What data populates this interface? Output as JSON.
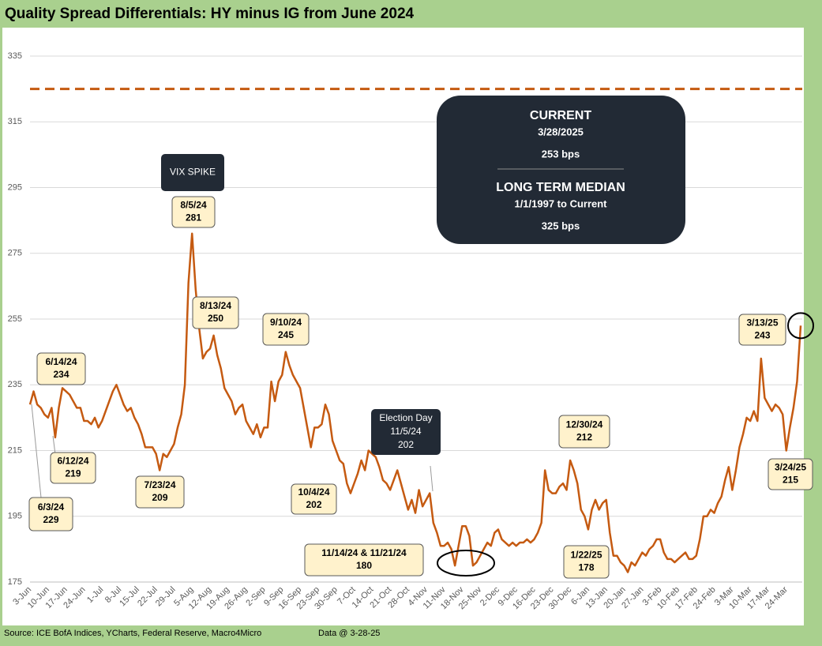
{
  "chart_data": {
    "type": "line",
    "title": "Quality Spread Differentials: HY minus IG from June 2024",
    "source": "Source: ICE BofA Indices, YCharts, Federal Reserve, Macro4Micro",
    "data_note": "Data @ 3-28-25",
    "categories": [
      "3-Jun",
      null,
      null,
      null,
      null,
      "10-Jun",
      null,
      null,
      null,
      null,
      "17-Jun",
      null,
      null,
      null,
      null,
      "24-Jun",
      null,
      null,
      null,
      null,
      "1-Jul",
      null,
      null,
      null,
      null,
      "8-Jul",
      null,
      null,
      null,
      null,
      "15-Jul",
      null,
      null,
      null,
      null,
      "22-Jul",
      null,
      null,
      null,
      null,
      "29-Jul",
      null,
      null,
      null,
      null,
      "5-Aug",
      null,
      null,
      null,
      null,
      "12-Aug",
      null,
      null,
      null,
      null,
      "19-Aug",
      null,
      null,
      null,
      null,
      "26-Aug",
      null,
      null,
      null,
      null,
      "2-Sep",
      null,
      null,
      null,
      null,
      "9-Sep",
      null,
      null,
      null,
      null,
      "16-Sep",
      null,
      null,
      null,
      null,
      "23-Sep",
      null,
      null,
      null,
      null,
      "30-Sep",
      null,
      null,
      null,
      null,
      "7-Oct",
      null,
      null,
      null,
      null,
      "14-Oct",
      null,
      null,
      null,
      null,
      "21-Oct",
      null,
      null,
      null,
      null,
      "28-Oct",
      null,
      null,
      null,
      null,
      "4-Nov",
      null,
      null,
      null,
      null,
      "11-Nov",
      null,
      null,
      null,
      null,
      "18-Nov",
      null,
      null,
      null,
      null,
      "25-Nov",
      null,
      null,
      null,
      null,
      "2-Dec",
      null,
      null,
      null,
      null,
      "9-Dec",
      null,
      null,
      null,
      null,
      "16-Dec",
      null,
      null,
      null,
      null,
      "23-Dec",
      null,
      null,
      null,
      null,
      "30-Dec",
      null,
      null,
      null,
      null,
      "6-Jan",
      null,
      null,
      null,
      null,
      "13-Jan",
      null,
      null,
      null,
      null,
      "20-Jan",
      null,
      null,
      null,
      null,
      "27-Jan",
      null,
      null,
      null,
      null,
      "3-Feb",
      null,
      null,
      null,
      null,
      "10-Feb",
      null,
      null,
      null,
      null,
      "17-Feb",
      null,
      null,
      null,
      null,
      "24-Feb",
      null,
      null,
      null,
      null,
      "3-Mar",
      null,
      null,
      null,
      null,
      "10-Mar",
      null,
      null,
      null,
      null,
      "17-Mar",
      null,
      null,
      null,
      null,
      "24-Mar",
      null,
      null,
      null,
      null
    ],
    "values": [
      229,
      233,
      229,
      228,
      226,
      225,
      228,
      219,
      228,
      234,
      233,
      232,
      230,
      228,
      228,
      224,
      224,
      223,
      225,
      222,
      224,
      227,
      230,
      233,
      235,
      232,
      229,
      227,
      228,
      225,
      223,
      220,
      216,
      216,
      216,
      214,
      209,
      214,
      213,
      215,
      217,
      222,
      226,
      235,
      266,
      281,
      264,
      252,
      243,
      245,
      246,
      250,
      244,
      240,
      234,
      232,
      230,
      226,
      228,
      229,
      224,
      222,
      220,
      223,
      219,
      222,
      222,
      236,
      230,
      236,
      238,
      245,
      241,
      238,
      236,
      234,
      228,
      222,
      216,
      222,
      222,
      223,
      229,
      226,
      218,
      215,
      212,
      211,
      205,
      202,
      205,
      208,
      212,
      209,
      215,
      214,
      213,
      210,
      206,
      205,
      203,
      206,
      209,
      205,
      201,
      197,
      200,
      196,
      203,
      198,
      200,
      202,
      193,
      190,
      186,
      186,
      187,
      185,
      180,
      186,
      192,
      192,
      189,
      180,
      181,
      183,
      185,
      187,
      186,
      190,
      191,
      188,
      187,
      186,
      187,
      186,
      187,
      187,
      188,
      187,
      188,
      190,
      193,
      209,
      203,
      202,
      202,
      204,
      205,
      203,
      212,
      209,
      205,
      197,
      195,
      191,
      197,
      200,
      197,
      199,
      200,
      190,
      183,
      183,
      181,
      180,
      178,
      181,
      180,
      182,
      184,
      183,
      185,
      186,
      188,
      188,
      184,
      182,
      182,
      181,
      182,
      183,
      184,
      182,
      182,
      183,
      188,
      195,
      195,
      197,
      196,
      199,
      201,
      206,
      210,
      203,
      209,
      216,
      220,
      225,
      224,
      227,
      224,
      243,
      231,
      229,
      227,
      229,
      228,
      226,
      215,
      222,
      228,
      236,
      253
    ],
    "color": "#c55a11",
    "median": 325,
    "median_color": "#c55a11",
    "ylim": [
      175,
      335
    ],
    "yticks": [
      175,
      195,
      215,
      235,
      255,
      275,
      295,
      315,
      335
    ],
    "grid": true,
    "info_box": [
      "CURRENT",
      "3/28/2025",
      "253 bps",
      "LONG TERM MEDIAN",
      "1/1/1997 to Current",
      "325 bps"
    ],
    "callouts": [
      [
        "VIX SPIKE"
      ],
      [
        "Election Day",
        "11/5/24",
        "202"
      ]
    ],
    "annotations": [
      [
        "6/14/24",
        "234"
      ],
      [
        "6/12/24",
        "219"
      ],
      [
        "6/3/24",
        "229"
      ],
      [
        "7/23/24",
        "209"
      ],
      [
        "8/5/24",
        "281"
      ],
      [
        "8/13/24",
        "250"
      ],
      [
        "9/10/24",
        "245"
      ],
      [
        "10/4/24",
        "202"
      ],
      [
        "11/14/24 & 11/21/24",
        "180"
      ],
      [
        "12/30/24",
        "212"
      ],
      [
        "1/22/25",
        "178"
      ],
      [
        "3/13/25",
        "243"
      ],
      [
        "3/24/25",
        "215"
      ]
    ]
  }
}
